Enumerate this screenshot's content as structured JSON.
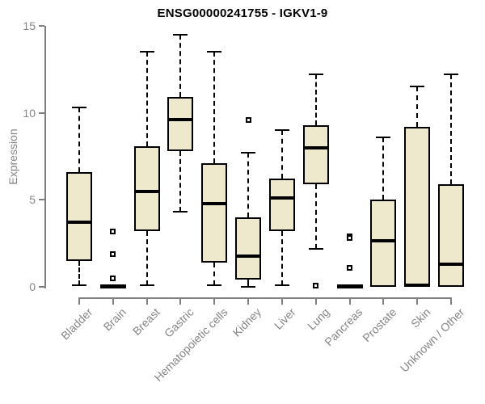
{
  "chart_data": {
    "type": "boxplot",
    "title": "ENSG00000241755 - IGKV1-9",
    "ylabel": "Expression",
    "xlabel": "",
    "ylim": [
      0,
      15
    ],
    "yticks": [
      0,
      5,
      10,
      15
    ],
    "grid": false,
    "legend": "none",
    "categories": [
      "Bladder",
      "Brain",
      "Breast",
      "Gastric",
      "Hematopoietic cells",
      "Kidney",
      "Liver",
      "Lung",
      "Pancreas",
      "Prostate",
      "Skin",
      "Unknown / Other"
    ],
    "boxes": [
      {
        "category": "Bladder",
        "whisker_low": 0.1,
        "q1": 1.5,
        "median": 3.7,
        "q3": 6.6,
        "whisker_high": 10.3,
        "outliers": []
      },
      {
        "category": "Brain",
        "whisker_low": 0,
        "q1": 0,
        "median": 0.05,
        "q3": 0.1,
        "whisker_high": 0.1,
        "outliers": [
          3.2,
          1.9,
          0.5
        ]
      },
      {
        "category": "Breast",
        "whisker_low": 0.1,
        "q1": 3.2,
        "median": 5.5,
        "q3": 8.1,
        "whisker_high": 13.5,
        "outliers": []
      },
      {
        "category": "Gastric",
        "whisker_low": 4.3,
        "q1": 7.8,
        "median": 9.6,
        "q3": 10.9,
        "whisker_high": 14.5,
        "outliers": []
      },
      {
        "category": "Hematopoietic cells",
        "whisker_low": 0.1,
        "q1": 1.4,
        "median": 4.8,
        "q3": 7.1,
        "whisker_high": 13.5,
        "outliers": []
      },
      {
        "category": "Kidney",
        "whisker_low": 0,
        "q1": 0.4,
        "median": 1.75,
        "q3": 4.0,
        "whisker_high": 7.7,
        "outliers": [
          9.6
        ]
      },
      {
        "category": "Liver",
        "whisker_low": 0.1,
        "q1": 3.2,
        "median": 5.1,
        "q3": 6.2,
        "whisker_high": 9.0,
        "outliers": []
      },
      {
        "category": "Lung",
        "whisker_low": 2.2,
        "q1": 5.9,
        "median": 8.0,
        "q3": 9.3,
        "whisker_high": 12.2,
        "outliers": [
          0.05
        ]
      },
      {
        "category": "Pancreas",
        "whisker_low": 0,
        "q1": 0,
        "median": 0.05,
        "q3": 0.1,
        "whisker_high": 0.1,
        "outliers": [
          2.9,
          2.8,
          1.1
        ]
      },
      {
        "category": "Prostate",
        "whisker_low": 0,
        "q1": 0,
        "median": 2.65,
        "q3": 5.0,
        "whisker_high": 8.6,
        "outliers": []
      },
      {
        "category": "Skin",
        "whisker_low": 0,
        "q1": 0,
        "median": 0.1,
        "q3": 9.2,
        "whisker_high": 11.5,
        "outliers": []
      },
      {
        "category": "Unknown / Other",
        "whisker_low": 0,
        "q1": 0,
        "median": 1.3,
        "q3": 5.9,
        "whisker_high": 12.2,
        "outliers": []
      }
    ],
    "colors": {
      "box_fill": "#EEE8CD",
      "box_border": "#000000",
      "median": "#000000",
      "whisker": "#000000",
      "outlier_fill": "#ffffff",
      "axis": "#7f7f7f",
      "axis_text": "#858585",
      "title_text": "#000000",
      "background": "#ffffff"
    }
  }
}
